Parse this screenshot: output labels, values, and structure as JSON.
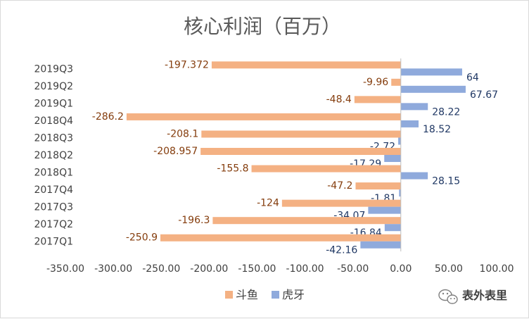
{
  "chart_data": {
    "type": "bar",
    "orientation": "horizontal",
    "title": "核心利润（百万）",
    "categories": [
      "2019Q3",
      "2019Q2",
      "2019Q1",
      "2018Q4",
      "2018Q3",
      "2018Q2",
      "2018Q1",
      "2017Q4",
      "2017Q3",
      "2017Q2",
      "2017Q1"
    ],
    "series": [
      {
        "name": "斗鱼",
        "color": "#f4b183",
        "label_color": "#843c0c",
        "values": [
          -197.372,
          -9.96,
          -48.4,
          -286.2,
          -208.1,
          -208.957,
          -155.8,
          -47.2,
          -124,
          -196.3,
          -250.9
        ]
      },
      {
        "name": "虎牙",
        "color": "#8faadc",
        "label_color": "#203864",
        "values": [
          64,
          67.67,
          28.22,
          18.52,
          -2.72,
          -17.29,
          28.15,
          -1.81,
          -34.07,
          -16.84,
          -42.16
        ]
      }
    ],
    "xlim": [
      -350,
      100
    ],
    "x_ticks": [
      "-350.00",
      "-300.00",
      "-250.00",
      "-200.00",
      "-150.00",
      "-100.00",
      "-50.00",
      "0.00",
      "50.00",
      "100.00"
    ],
    "legend_position": "bottom",
    "grid": false
  },
  "watermark": {
    "text": "表外表里"
  }
}
